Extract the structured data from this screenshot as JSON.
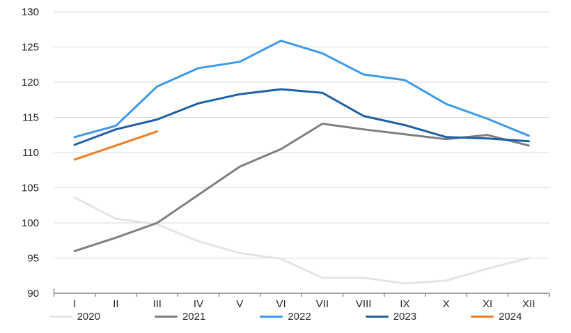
{
  "chart_data": {
    "type": "line",
    "title": "",
    "xlabel": "",
    "ylabel": "",
    "categories": [
      "I",
      "II",
      "III",
      "IV",
      "V",
      "VI",
      "VII",
      "VIII",
      "IX",
      "X",
      "XI",
      "XII"
    ],
    "series": [
      {
        "name": "2020",
        "color": "#E4E4E4",
        "values": [
          103.6,
          100.6,
          99.8,
          97.4,
          95.7,
          94.9,
          92.2,
          92.2,
          91.4,
          91.8,
          93.5,
          95.0
        ]
      },
      {
        "name": "2021",
        "color": "#7F7F7F",
        "values": [
          96.0,
          97.9,
          100.0,
          104.0,
          108.0,
          110.5,
          114.1,
          113.3,
          112.6,
          111.9,
          112.5,
          111.0
        ]
      },
      {
        "name": "2022",
        "color": "#3C99EC",
        "values": [
          112.2,
          113.8,
          119.4,
          122.0,
          122.9,
          125.9,
          124.1,
          121.1,
          120.3,
          116.9,
          114.8,
          112.4
        ]
      },
      {
        "name": "2023",
        "color": "#1F5FA5",
        "values": [
          111.1,
          113.3,
          114.7,
          117.0,
          118.3,
          119.0,
          118.5,
          115.2,
          113.9,
          112.2,
          112.0,
          111.6
        ]
      },
      {
        "name": "2024",
        "color": "#F17C21",
        "values": [
          109.0,
          111.0,
          113.0,
          null,
          null,
          null,
          null,
          null,
          null,
          null,
          null,
          null
        ]
      }
    ],
    "ylim": [
      90,
      130
    ],
    "ytick_step": 5,
    "grid": true,
    "legend_position": "bottom",
    "colors": {
      "grid_line": "#D9D9D9",
      "axis_line": "#808080",
      "tick_mark": "#808080",
      "label_text": "#262626",
      "background": "#FFFFFF"
    }
  }
}
